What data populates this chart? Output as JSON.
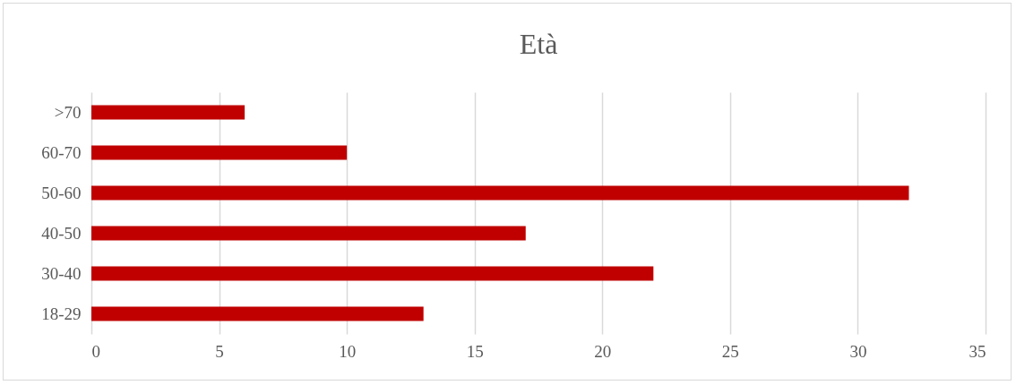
{
  "chart_data": {
    "type": "bar",
    "orientation": "horizontal",
    "title": "Età",
    "categories": [
      ">70",
      "60-70",
      "50-60",
      "40-50",
      "30-40",
      "18-29"
    ],
    "values": [
      6,
      10,
      32,
      17,
      22,
      13
    ],
    "color": "#c00000",
    "xlim": [
      0,
      35
    ],
    "xticks": [
      0,
      5,
      10,
      15,
      20,
      25,
      30,
      35
    ],
    "grid": "x"
  }
}
